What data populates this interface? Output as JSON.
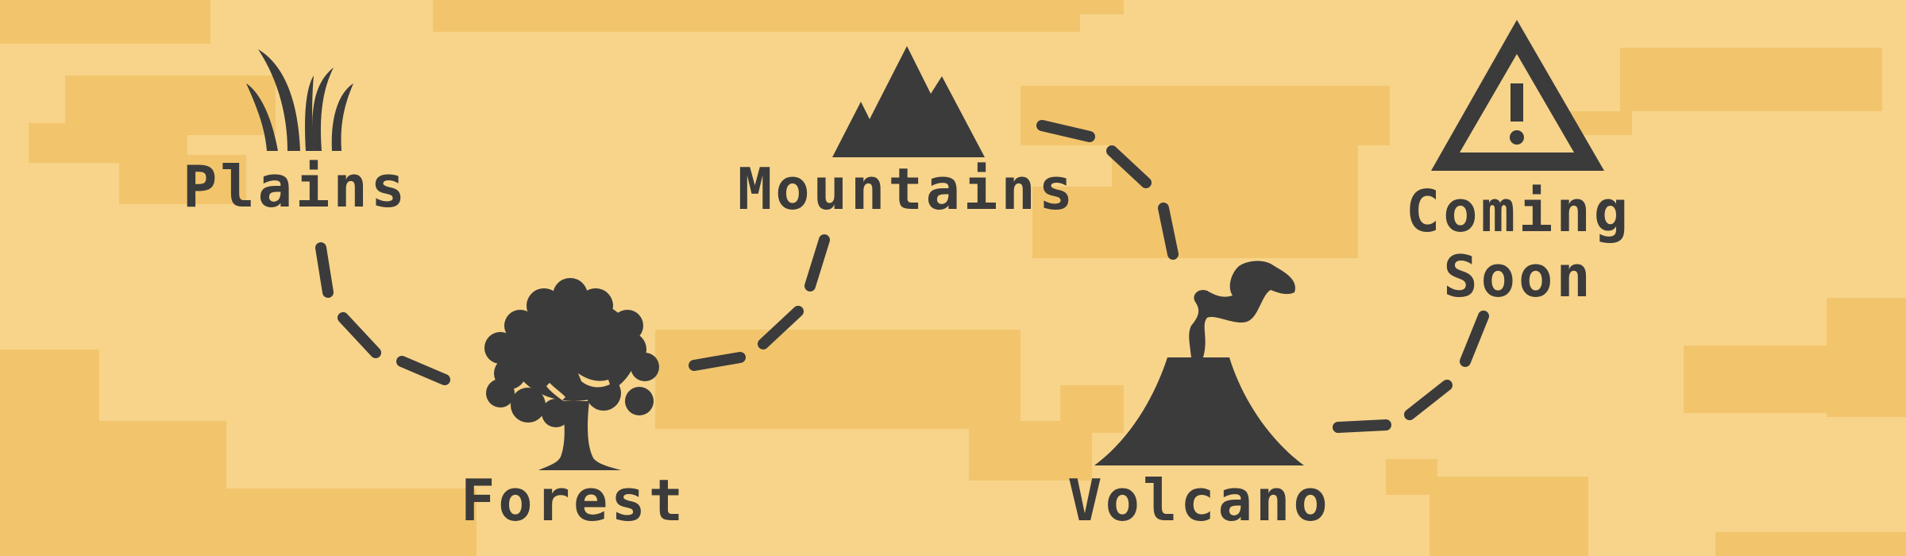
{
  "map": {
    "colors": {
      "background": "#f7d48a",
      "terrain_shade": "#f2c56d",
      "ink": "#3b3b3b"
    },
    "levels": [
      {
        "id": "plains",
        "label": "Plains",
        "icon": "grass-icon",
        "status": "unlocked"
      },
      {
        "id": "forest",
        "label": "Forest",
        "icon": "tree-icon",
        "status": "unlocked"
      },
      {
        "id": "mountains",
        "label": "Mountains",
        "icon": "mountain-icon",
        "status": "unlocked"
      },
      {
        "id": "volcano",
        "label": "Volcano",
        "icon": "volcano-icon",
        "status": "unlocked"
      },
      {
        "id": "coming-soon",
        "label": "Coming\nSoon",
        "icon": "warning-icon",
        "status": "locked"
      }
    ]
  }
}
